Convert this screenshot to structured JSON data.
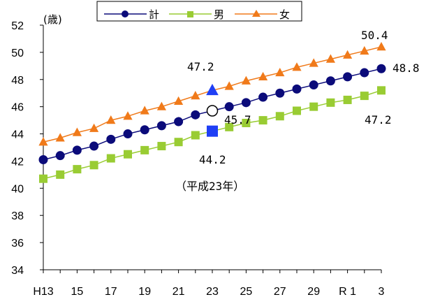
{
  "chart_data": {
    "type": "line",
    "ylabel": "(歳)",
    "ylim": [
      34,
      52
    ],
    "yticks": [
      "34",
      "36",
      "38",
      "40",
      "42",
      "44",
      "46",
      "48",
      "50",
      "52"
    ],
    "x_tick_labels": [
      "H13",
      "15",
      "17",
      "19",
      "21",
      "23",
      "25",
      "27",
      "29",
      "R 1",
      "3"
    ],
    "x": [
      "H13",
      "H14",
      "H15",
      "H16",
      "H17",
      "H18",
      "H19",
      "H20",
      "H21",
      "H22",
      "H23",
      "H24",
      "H25",
      "H26",
      "H27",
      "H28",
      "H29",
      "H30",
      "R1",
      "R2",
      "R3"
    ],
    "grid": false,
    "legend": "top-center",
    "series": [
      {
        "name": "計",
        "color": "#0b0b7a",
        "marker": "circle",
        "values": [
          42.1,
          42.4,
          42.8,
          43.1,
          43.6,
          44.0,
          44.3,
          44.6,
          44.9,
          45.4,
          45.7,
          46.0,
          46.3,
          46.7,
          47.0,
          47.3,
          47.6,
          47.9,
          48.2,
          48.5,
          48.8
        ]
      },
      {
        "name": "男",
        "color": "#99cc33",
        "marker": "square",
        "values": [
          40.7,
          41.0,
          41.4,
          41.7,
          42.2,
          42.5,
          42.8,
          43.1,
          43.4,
          43.9,
          44.2,
          44.5,
          44.8,
          45.0,
          45.3,
          45.7,
          46.0,
          46.3,
          46.5,
          46.8,
          47.2
        ]
      },
      {
        "name": "女",
        "color": "#f07a1a",
        "marker": "triangle",
        "values": [
          43.4,
          43.7,
          44.1,
          44.4,
          45.0,
          45.3,
          45.7,
          46.0,
          46.4,
          46.8,
          47.2,
          47.5,
          47.9,
          48.2,
          48.5,
          48.9,
          49.2,
          49.5,
          49.8,
          50.1,
          50.4
        ]
      }
    ],
    "highlight": {
      "x": "H23",
      "series": [
        {
          "name": "計",
          "value": 45.7,
          "color": "#ffffff",
          "marker": "circle"
        },
        {
          "name": "男",
          "value": 44.2,
          "color": "#1f3ff5",
          "marker": "square"
        },
        {
          "name": "女",
          "value": 47.2,
          "color": "#1f3ff5",
          "marker": "triangle"
        }
      ]
    },
    "annotations": [
      {
        "id": "female_h23",
        "text": "47.2"
      },
      {
        "id": "total_h23",
        "text": "45.7"
      },
      {
        "id": "male_h23",
        "text": "44.2"
      },
      {
        "id": "era_note",
        "text": "（平成23年）"
      },
      {
        "id": "female_r3",
        "text": "50.4"
      },
      {
        "id": "total_r3",
        "text": "48.8"
      },
      {
        "id": "male_r3",
        "text": "47.2"
      }
    ]
  }
}
